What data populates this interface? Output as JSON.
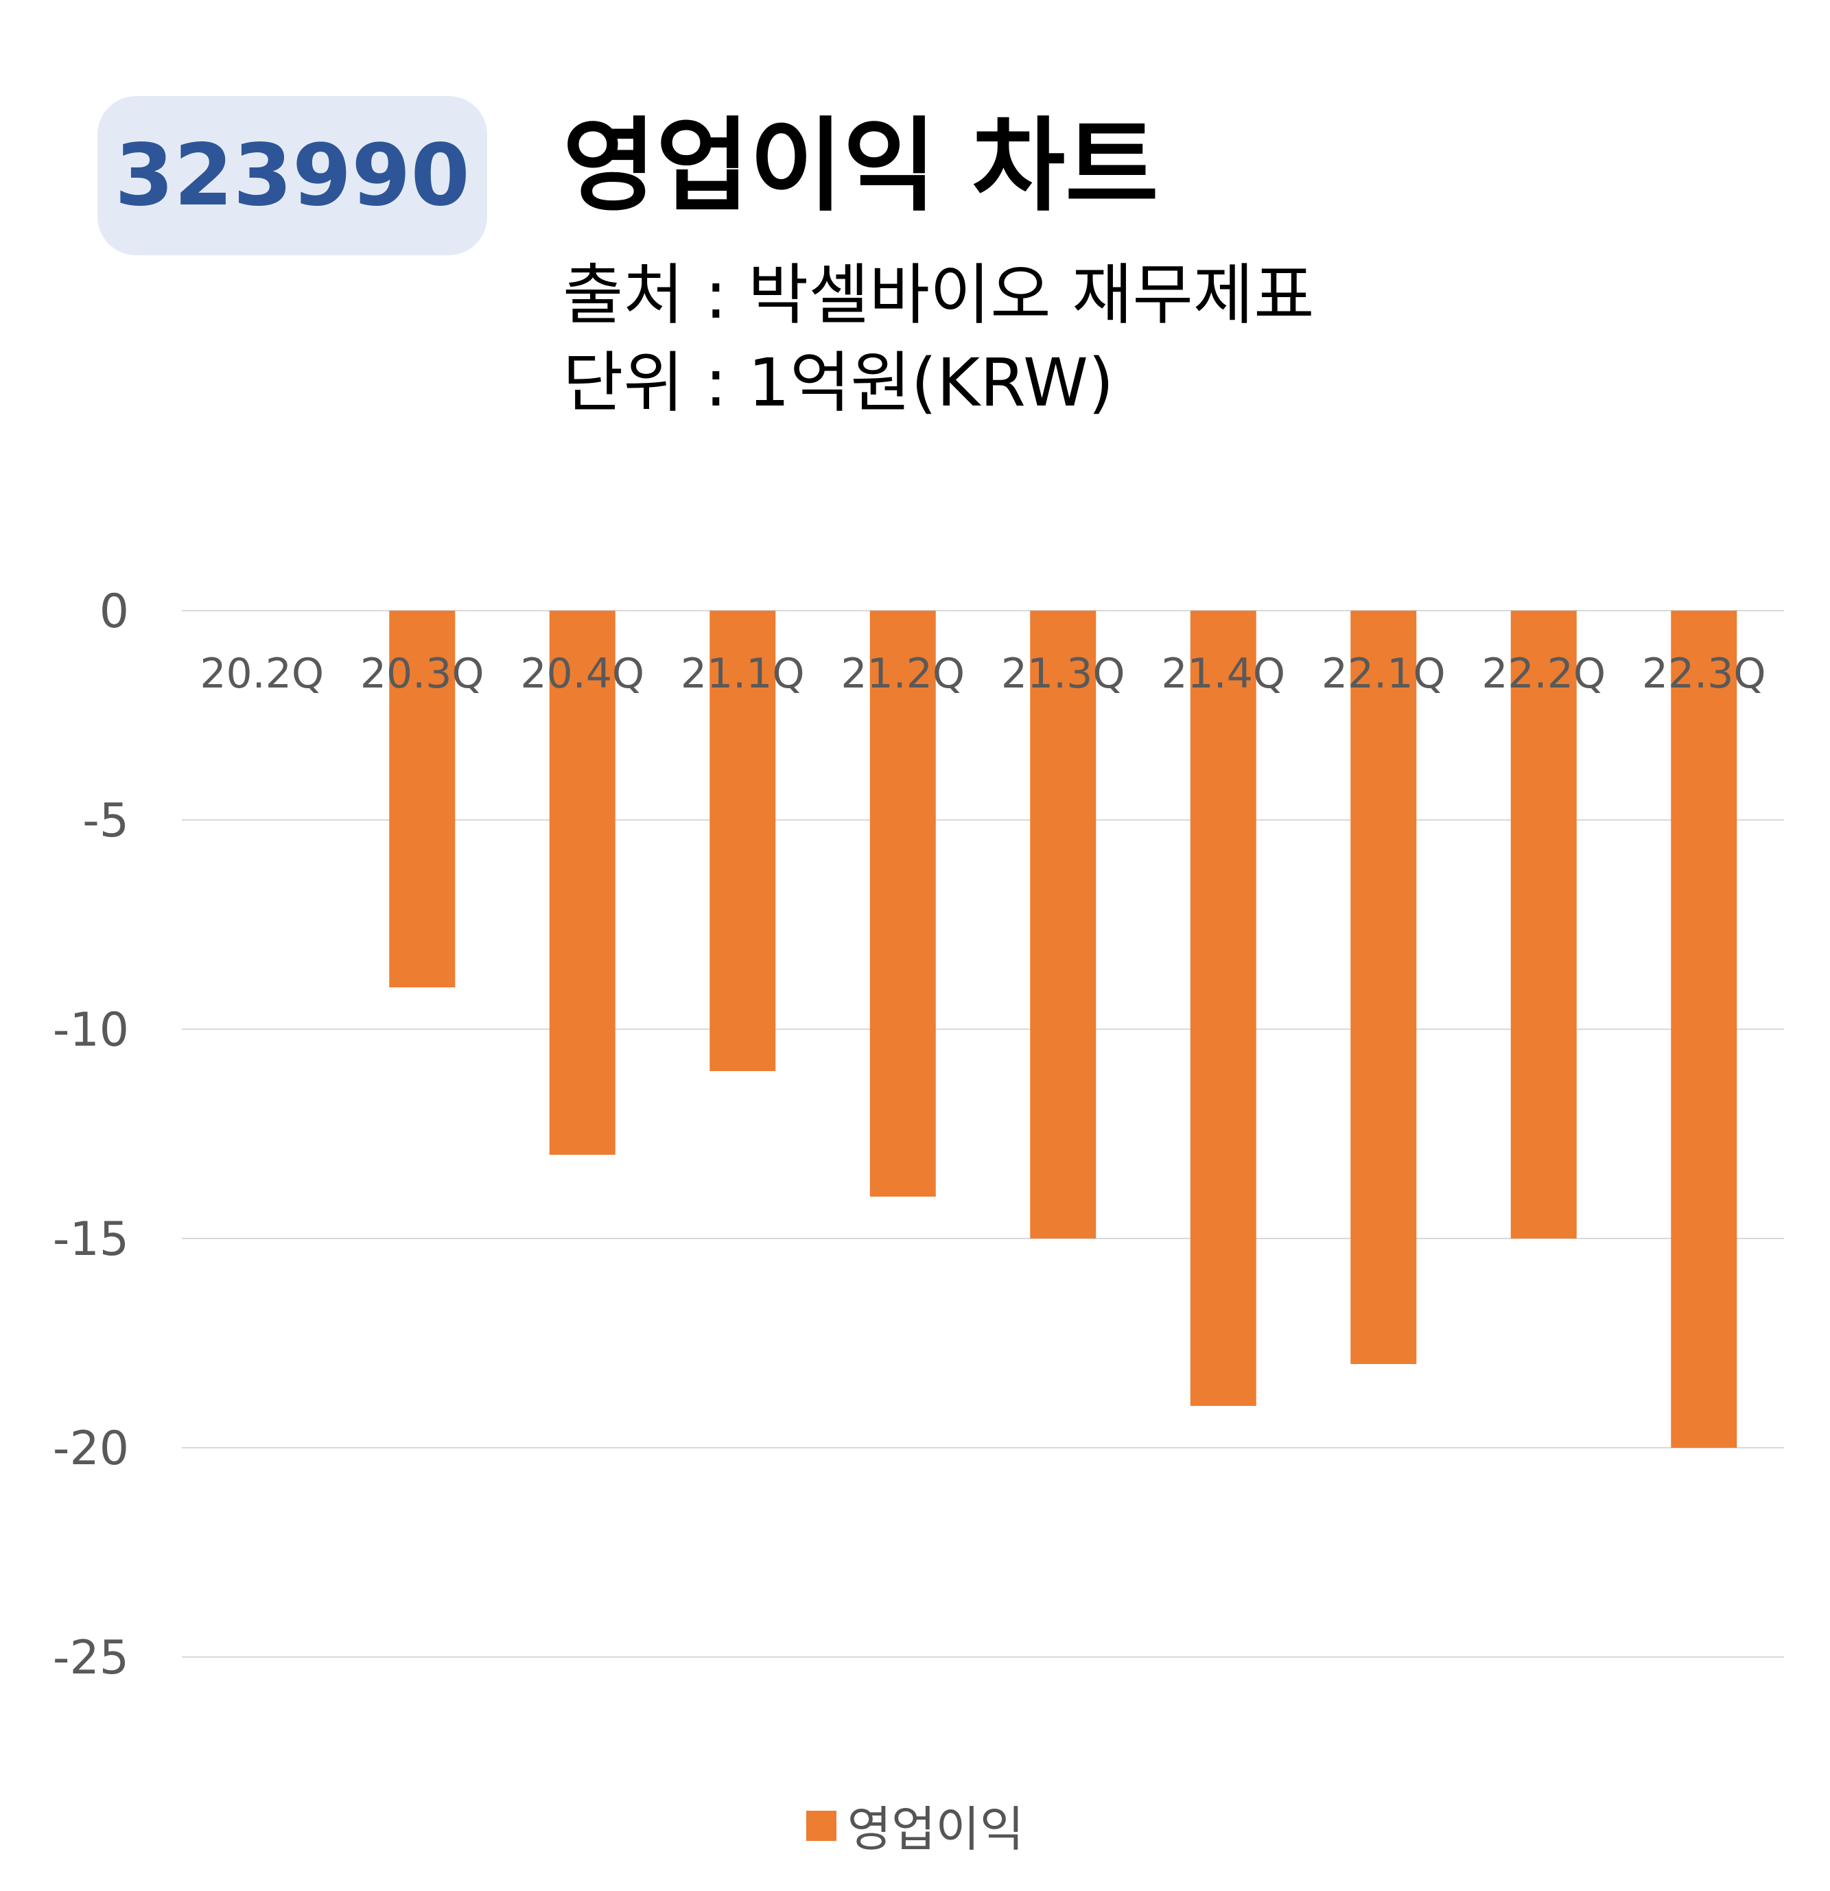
{
  "badge": {
    "ticker": "323990"
  },
  "header": {
    "title": "영업이익 차트",
    "source": "출처 : 박셀바이오 재무제표",
    "unit": "단위 : 1억원(KRW)"
  },
  "colors": {
    "bar": "#ed7d31",
    "badge_bg": "#e4eaf5",
    "badge_text": "#2e5597",
    "grid": "#d9d9d9",
    "tick_text": "#595959"
  },
  "chart_data": {
    "type": "bar",
    "categories": [
      "20.2Q",
      "20.3Q",
      "20.4Q",
      "21.1Q",
      "21.2Q",
      "21.3Q",
      "21.4Q",
      "22.1Q",
      "22.2Q",
      "22.3Q"
    ],
    "series": [
      {
        "name": "영업이익",
        "values": [
          0,
          -9,
          -13,
          -11,
          -14,
          -15,
          -19,
          -18,
          -15,
          -20
        ]
      }
    ],
    "title": "영업이익 차트",
    "xlabel": "",
    "ylabel": "",
    "ylim": [
      -25,
      0
    ],
    "yticks": [
      0,
      -5,
      -10,
      -15,
      -20,
      -25
    ],
    "grid": true,
    "legend": "bottom"
  }
}
